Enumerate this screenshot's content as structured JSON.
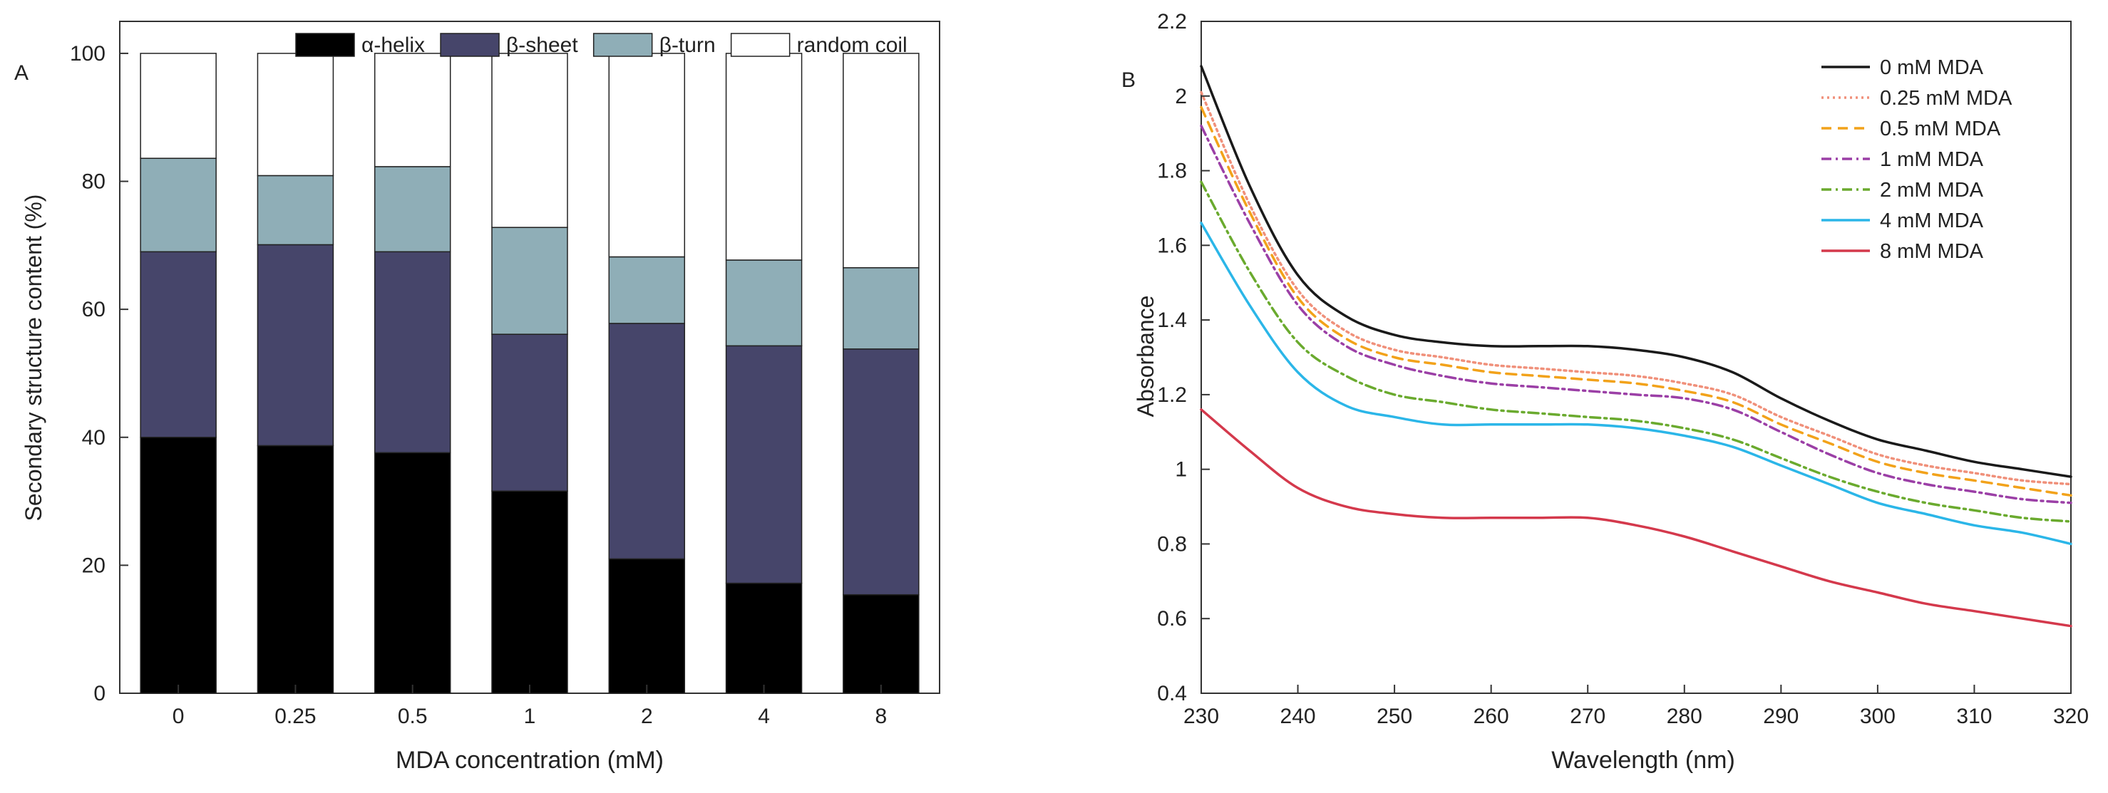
{
  "panels": {
    "a_label": "A",
    "b_label": "B"
  },
  "chart_data": [
    {
      "type": "bar",
      "stacked": true,
      "panel": "A",
      "title": "",
      "xlabel": "MDA concentration (mM)",
      "ylabel": "Secondary structure content (%)",
      "ylim": [
        0,
        105
      ],
      "yticks": [
        0,
        20,
        40,
        60,
        80,
        100
      ],
      "categories": [
        "0",
        "0.25",
        "0.5",
        "1",
        "2",
        "4",
        "8"
      ],
      "legend_position": "top",
      "series": [
        {
          "name": "α-helix",
          "color": "#000000",
          "values": [
            40.0,
            38.7,
            37.6,
            31.6,
            21.0,
            17.2,
            15.4
          ]
        },
        {
          "name": "β-sheet",
          "color": "#46456a",
          "values": [
            29.0,
            31.4,
            31.4,
            24.5,
            36.8,
            37.1,
            38.4
          ]
        },
        {
          "name": "β-turn",
          "color": "#8faeb7",
          "values": [
            14.6,
            10.8,
            13.3,
            16.7,
            10.4,
            13.4,
            12.7
          ]
        },
        {
          "name": "random coil",
          "color": "#ffffff",
          "values": [
            16.4,
            19.1,
            17.7,
            27.2,
            31.8,
            32.3,
            33.5
          ]
        }
      ]
    },
    {
      "type": "line",
      "panel": "B",
      "title": "",
      "xlabel": "Wavelength (nm)",
      "ylabel": "Absorbance",
      "xlim": [
        230,
        320
      ],
      "ylim": [
        0.4,
        2.2
      ],
      "xticks": [
        230,
        240,
        250,
        260,
        270,
        280,
        290,
        300,
        310,
        320
      ],
      "yticks": [
        {
          "value": 0.4,
          "label": "0.4"
        },
        {
          "value": 0.6,
          "label": "0.6"
        },
        {
          "value": 0.8,
          "label": "0.8"
        },
        {
          "value": 1.0,
          "label": "1"
        },
        {
          "value": 1.2,
          "label": "1.2"
        },
        {
          "value": 1.4,
          "label": "1.4"
        },
        {
          "value": 1.6,
          "label": "1.6"
        },
        {
          "value": 1.8,
          "label": "1.8"
        },
        {
          "value": 2.0,
          "label": "2"
        },
        {
          "value": 2.2,
          "label": "2.2"
        }
      ],
      "legend_position": "top-right",
      "x": [
        230,
        235,
        240,
        245,
        250,
        255,
        260,
        265,
        270,
        275,
        280,
        285,
        290,
        295,
        300,
        305,
        310,
        315,
        320
      ],
      "series": [
        {
          "name": "0 mM MDA",
          "color": "#1a1a1a",
          "dash": "solid",
          "values": [
            2.08,
            1.76,
            1.52,
            1.41,
            1.36,
            1.34,
            1.33,
            1.33,
            1.33,
            1.32,
            1.3,
            1.26,
            1.19,
            1.13,
            1.08,
            1.05,
            1.02,
            1.0,
            0.98
          ]
        },
        {
          "name": "0.25 mM MDA",
          "color": "#f0907a",
          "dash": "dotted",
          "values": [
            2.01,
            1.71,
            1.48,
            1.37,
            1.32,
            1.3,
            1.28,
            1.27,
            1.26,
            1.25,
            1.23,
            1.2,
            1.14,
            1.09,
            1.04,
            1.01,
            0.99,
            0.97,
            0.96
          ]
        },
        {
          "name": "0.5 mM MDA",
          "color": "#f2a21a",
          "dash": "dashed",
          "values": [
            1.97,
            1.69,
            1.46,
            1.35,
            1.3,
            1.28,
            1.26,
            1.25,
            1.24,
            1.23,
            1.21,
            1.18,
            1.12,
            1.07,
            1.02,
            0.99,
            0.97,
            0.95,
            0.93
          ]
        },
        {
          "name": "1 mM MDA",
          "color": "#9b3fa6",
          "dash": "dashdot",
          "values": [
            1.92,
            1.66,
            1.44,
            1.33,
            1.28,
            1.25,
            1.23,
            1.22,
            1.21,
            1.2,
            1.19,
            1.16,
            1.1,
            1.04,
            0.99,
            0.96,
            0.94,
            0.92,
            0.91
          ]
        },
        {
          "name": "2 mM MDA",
          "color": "#6aaa2e",
          "dash": "dashdot",
          "values": [
            1.77,
            1.53,
            1.34,
            1.25,
            1.2,
            1.18,
            1.16,
            1.15,
            1.14,
            1.13,
            1.11,
            1.08,
            1.03,
            0.98,
            0.94,
            0.91,
            0.89,
            0.87,
            0.86
          ]
        },
        {
          "name": "4 mM MDA",
          "color": "#2bb6e8",
          "dash": "solid",
          "values": [
            1.66,
            1.44,
            1.26,
            1.17,
            1.14,
            1.12,
            1.12,
            1.12,
            1.12,
            1.11,
            1.09,
            1.06,
            1.01,
            0.96,
            0.91,
            0.88,
            0.85,
            0.83,
            0.8
          ]
        },
        {
          "name": "8 mM MDA",
          "color": "#d4394c",
          "dash": "solid",
          "values": [
            1.16,
            1.05,
            0.95,
            0.9,
            0.88,
            0.87,
            0.87,
            0.87,
            0.87,
            0.85,
            0.82,
            0.78,
            0.74,
            0.7,
            0.67,
            0.64,
            0.62,
            0.6,
            0.58
          ]
        }
      ]
    }
  ]
}
